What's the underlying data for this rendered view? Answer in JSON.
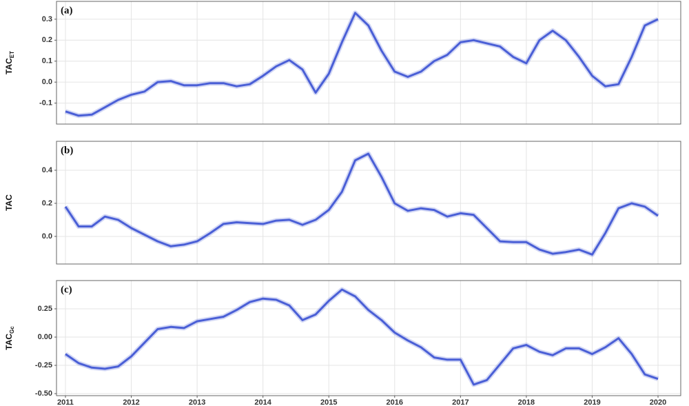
{
  "chart_data": [
    {
      "type": "line",
      "panel_label": "(a)",
      "y_label": "TAC",
      "y_label_sub": "ET",
      "color": "#4a5fd6",
      "grid": true,
      "show_xtick_labels": false,
      "x": [
        2011.0,
        2011.2,
        2011.4,
        2011.6,
        2011.8,
        2012.0,
        2012.2,
        2012.4,
        2012.6,
        2012.8,
        2013.0,
        2013.2,
        2013.4,
        2013.6,
        2013.8,
        2014.0,
        2014.2,
        2014.4,
        2014.6,
        2014.8,
        2015.0,
        2015.2,
        2015.4,
        2015.6,
        2015.8,
        2016.0,
        2016.2,
        2016.4,
        2016.6,
        2016.8,
        2017.0,
        2017.2,
        2017.4,
        2017.6,
        2017.8,
        2018.0,
        2018.2,
        2018.4,
        2018.6,
        2018.8,
        2019.0,
        2019.2,
        2019.4,
        2019.6,
        2019.8,
        2020.0
      ],
      "values": [
        -0.14,
        -0.16,
        -0.155,
        -0.12,
        -0.085,
        -0.06,
        -0.045,
        0.0,
        0.005,
        -0.015,
        -0.015,
        -0.005,
        -0.005,
        -0.02,
        -0.01,
        0.03,
        0.075,
        0.105,
        0.06,
        -0.05,
        0.04,
        0.19,
        0.33,
        0.27,
        0.15,
        0.05,
        0.025,
        0.05,
        0.1,
        0.13,
        0.19,
        0.2,
        0.185,
        0.17,
        0.12,
        0.09,
        0.2,
        0.245,
        0.2,
        0.12,
        0.03,
        -0.02,
        -0.01,
        0.12,
        0.27,
        0.3
      ],
      "xlim": [
        2010.864,
        2020.345
      ],
      "xticks": [
        2011,
        2012,
        2013,
        2014,
        2015,
        2016,
        2017,
        2018,
        2019,
        2020
      ],
      "ylim": [
        -0.2,
        0.385
      ],
      "yticks": [
        -0.1,
        {
          "value": 0,
          "label": "0.0"
        },
        0.1,
        0.2,
        0.3
      ]
    },
    {
      "type": "line",
      "panel_label": "(b)",
      "y_label": "TAC",
      "color": "#4a5fd6",
      "grid": true,
      "show_xtick_labels": false,
      "x": [
        2011.0,
        2011.2,
        2011.4,
        2011.6,
        2011.8,
        2012.0,
        2012.2,
        2012.4,
        2012.6,
        2012.8,
        2013.0,
        2013.2,
        2013.4,
        2013.6,
        2013.8,
        2014.0,
        2014.2,
        2014.4,
        2014.6,
        2014.8,
        2015.0,
        2015.2,
        2015.4,
        2015.6,
        2015.8,
        2016.0,
        2016.2,
        2016.4,
        2016.6,
        2016.8,
        2017.0,
        2017.2,
        2017.4,
        2017.6,
        2017.8,
        2018.0,
        2018.2,
        2018.4,
        2018.6,
        2018.8,
        2019.0,
        2019.2,
        2019.4,
        2019.6,
        2019.8,
        2020.0
      ],
      "values": [
        0.18,
        0.06,
        0.06,
        0.12,
        0.1,
        0.05,
        0.01,
        -0.03,
        -0.06,
        -0.05,
        -0.03,
        0.02,
        0.075,
        0.085,
        0.08,
        0.075,
        0.095,
        0.1,
        0.07,
        0.1,
        0.16,
        0.27,
        0.46,
        0.5,
        0.36,
        0.2,
        0.155,
        0.17,
        0.16,
        0.12,
        0.14,
        0.13,
        0.05,
        -0.03,
        -0.035,
        -0.035,
        -0.08,
        -0.105,
        -0.095,
        -0.08,
        -0.11,
        0.02,
        0.17,
        0.2,
        0.18,
        0.125
      ],
      "xlim": [
        2010.864,
        2020.345
      ],
      "xticks": [
        2011,
        2012,
        2013,
        2014,
        2015,
        2016,
        2017,
        2018,
        2019,
        2020
      ],
      "ylim": [
        -0.167,
        0.575
      ],
      "yticks": [
        {
          "value": 0,
          "label": "0.0"
        },
        0.2,
        0.4
      ]
    },
    {
      "type": "line",
      "panel_label": "(c)",
      "y_label": "TAC",
      "y_label_sub": "Gc",
      "color": "#4a5fd6",
      "grid": true,
      "show_xtick_labels": true,
      "x": [
        2011.0,
        2011.2,
        2011.4,
        2011.6,
        2011.8,
        2012.0,
        2012.2,
        2012.4,
        2012.6,
        2012.8,
        2013.0,
        2013.2,
        2013.4,
        2013.6,
        2013.8,
        2014.0,
        2014.2,
        2014.4,
        2014.6,
        2014.8,
        2015.0,
        2015.2,
        2015.4,
        2015.6,
        2015.8,
        2016.0,
        2016.2,
        2016.4,
        2016.6,
        2016.8,
        2017.0,
        2017.2,
        2017.4,
        2017.6,
        2017.8,
        2018.0,
        2018.2,
        2018.4,
        2018.6,
        2018.8,
        2019.0,
        2019.2,
        2019.4,
        2019.6,
        2019.8,
        2020.0
      ],
      "values": [
        -0.15,
        -0.23,
        -0.27,
        -0.28,
        -0.26,
        -0.17,
        -0.05,
        0.07,
        0.09,
        0.08,
        0.14,
        0.16,
        0.18,
        0.24,
        0.31,
        0.34,
        0.33,
        0.28,
        0.15,
        0.2,
        0.32,
        0.42,
        0.36,
        0.24,
        0.15,
        0.04,
        -0.03,
        -0.09,
        -0.18,
        -0.2,
        -0.2,
        -0.42,
        -0.38,
        -0.24,
        -0.1,
        -0.07,
        -0.13,
        -0.16,
        -0.1,
        -0.1,
        -0.15,
        -0.09,
        -0.01,
        -0.15,
        -0.33,
        -0.37
      ],
      "xlim": [
        2010.864,
        2020.345
      ],
      "xticks": [
        2011,
        2012,
        2013,
        2014,
        2015,
        2016,
        2017,
        2018,
        2019,
        2020
      ],
      "ylim": [
        -0.518,
        0.5
      ],
      "yticks": [
        {
          "value": -0.5,
          "label": "-0.50"
        },
        -0.25,
        {
          "value": 0,
          "label": "0.00"
        },
        0.25
      ]
    }
  ]
}
